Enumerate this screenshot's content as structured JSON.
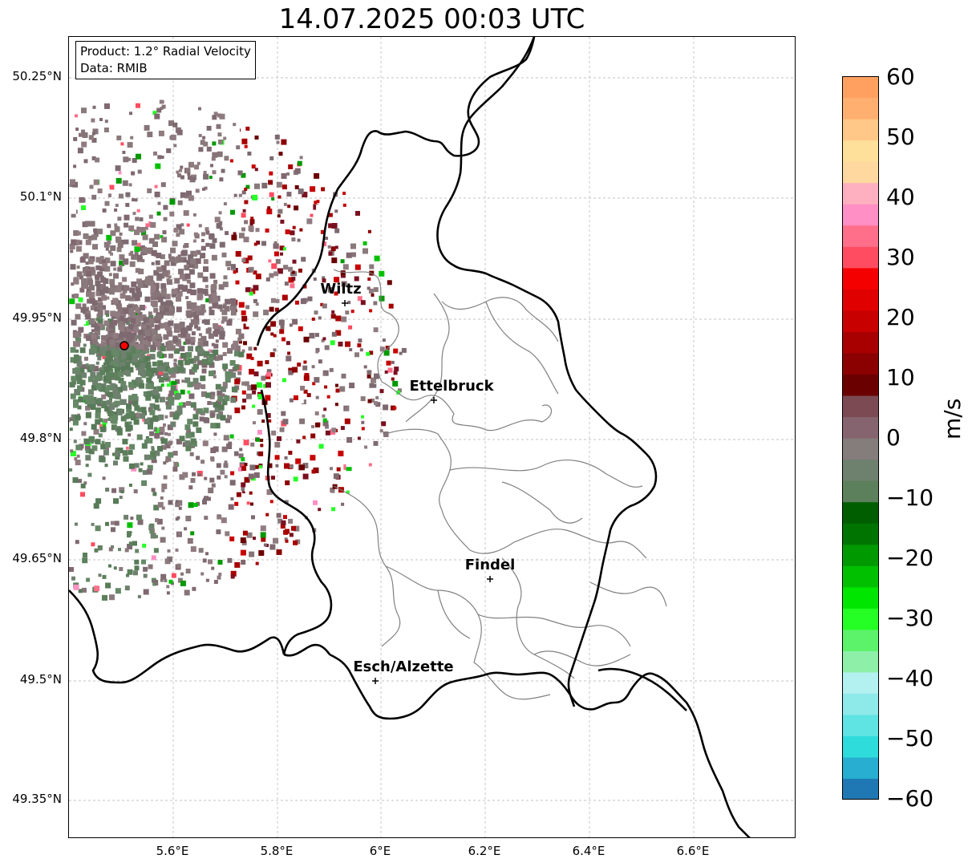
{
  "title": "14.07.2025 00:03 UTC",
  "info_box": {
    "product": "Product: 1.2° Radial Velocity",
    "data": "Data: RMIB"
  },
  "axes": {
    "lat_ticks": [
      "50.25°N",
      "50.1°N",
      "49.95°N",
      "49.8°N",
      "49.65°N",
      "49.5°N",
      "49.35°N"
    ],
    "lon_ticks": [
      "5.6°E",
      "5.8°E",
      "6°E",
      "6.2°E",
      "6.4°E",
      "6.6°E"
    ],
    "gridlines": true
  },
  "cities": [
    {
      "name": "Wiltz"
    },
    {
      "name": "Ettelbruck"
    },
    {
      "name": "Findel"
    },
    {
      "name": "Esch/Alzette"
    }
  ],
  "radar_site_color": "#ff0000",
  "colorbar": {
    "label": "m/s",
    "ticks": [
      "60",
      "50",
      "40",
      "30",
      "20",
      "10",
      "0",
      "−10",
      "−20",
      "−30",
      "−40",
      "−50",
      "−60"
    ],
    "range": [
      -60,
      60
    ],
    "colors": [
      "#1f78b4",
      "#27aed0",
      "#2fdcdc",
      "#5fe3e3",
      "#8ee9e9",
      "#b3f0f0",
      "#8ef0a8",
      "#5cf26a",
      "#25ff25",
      "#00e600",
      "#00c000",
      "#009900",
      "#007400",
      "#005e00",
      "#5c7f5c",
      "#6e806e",
      "#857c7c",
      "#856470",
      "#7b4a52",
      "#6b0000",
      "#8b0000",
      "#a80000",
      "#c80000",
      "#e00000",
      "#f50000",
      "#ff4c60",
      "#ff6f8a",
      "#ff8fc4",
      "#ffb0c0",
      "#ffd8a0",
      "#ffe09a",
      "#ffc888",
      "#ffb070",
      "#ffa060"
    ]
  }
}
